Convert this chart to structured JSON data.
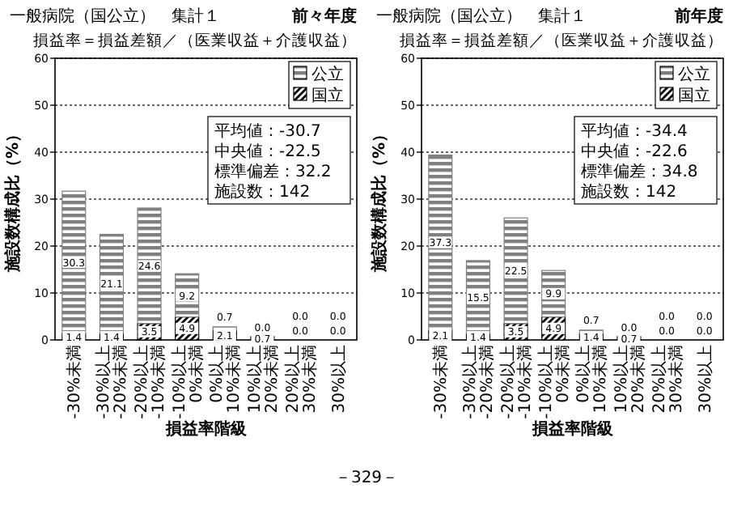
{
  "chart_data": [
    {
      "type": "bar",
      "title": "一般病院（国公立）　集計１",
      "subtitle": "前々年度",
      "xlabel": "損益率階級",
      "ylabel": "施設数構成比（%）",
      "annotations": [
        "損益率＝損益差額／（医業収益＋介護収益）",
        "平均値：-30.7",
        "中央値：-22.5",
        "標準偏差：32.2",
        "施設数：142"
      ],
      "categories": [
        "-30%未満",
        "-30%以上\n-20%未満",
        "-20%以上\n-10%未満",
        "-10%以上\n0%未満",
        "0%以上\n10%未満",
        "10%以上\n20%未満",
        "20%以上\n30%未満",
        "30%以上"
      ],
      "stacked": true,
      "series": [
        {
          "name": "国立",
          "color": "#000000",
          "values": [
            1.4,
            1.4,
            3.5,
            4.9,
            2.1,
            0.7,
            0.0,
            0.0
          ],
          "value_labels": [
            "1.4",
            "1.4",
            "3.5",
            "4.9",
            "2.1",
            "0.7",
            "0.0",
            "0.0"
          ]
        },
        {
          "name": "公立",
          "color": "#808080",
          "values": [
            30.3,
            21.1,
            24.6,
            9.2,
            0.7,
            0.0,
            0.0,
            0.0
          ],
          "value_labels": [
            "30.3",
            "21.1",
            "24.6",
            "9.2",
            "0.7",
            "0.0",
            "0.0",
            "0.0"
          ]
        }
      ],
      "ylim": [
        0,
        60
      ],
      "yticks": [
        0,
        10,
        20,
        30,
        40,
        50,
        60
      ],
      "grid": "y",
      "legend": "top right"
    },
    {
      "type": "bar",
      "title": "一般病院（国公立）　集計１",
      "subtitle": "前年度",
      "xlabel": "損益率階級",
      "ylabel": "施設数構成比（%）",
      "annotations": [
        "損益率＝損益差額／（医業収益＋介護収益）",
        "平均値：-34.4",
        "中央値：-22.6",
        "標準偏差：34.8",
        "施設数：142",
        "－329－"
      ],
      "categories": [
        "-30%未満",
        "-30%以上\n-20%未満",
        "-20%以上\n-10%未満",
        "-10%以上\n0%未満",
        "0%以上\n10%未満",
        "10%以上\n20%未満",
        "20%以上\n30%未満",
        "30%以上"
      ],
      "stacked": true,
      "series": [
        {
          "name": "国立",
          "color": "#000000",
          "values": [
            2.1,
            1.4,
            3.5,
            4.9,
            1.4,
            0.7,
            0.0,
            0.0
          ],
          "value_labels": [
            "2.1",
            "1.4",
            "3.5",
            "4.9",
            "1.4",
            "0.7",
            "0.0",
            "0.0"
          ]
        },
        {
          "name": "公立",
          "color": "#808080",
          "values": [
            37.3,
            15.5,
            22.5,
            9.9,
            0.7,
            0.0,
            0.0,
            0.0
          ],
          "value_labels": [
            "37.3",
            "15.5",
            "22.5",
            "9.9",
            "0.7",
            "0.0",
            "0.0",
            "0.0"
          ]
        }
      ],
      "ylim": [
        0,
        60
      ],
      "yticks": [
        0,
        10,
        20,
        30,
        40,
        50,
        60
      ],
      "grid": "y",
      "legend": "top right"
    }
  ]
}
